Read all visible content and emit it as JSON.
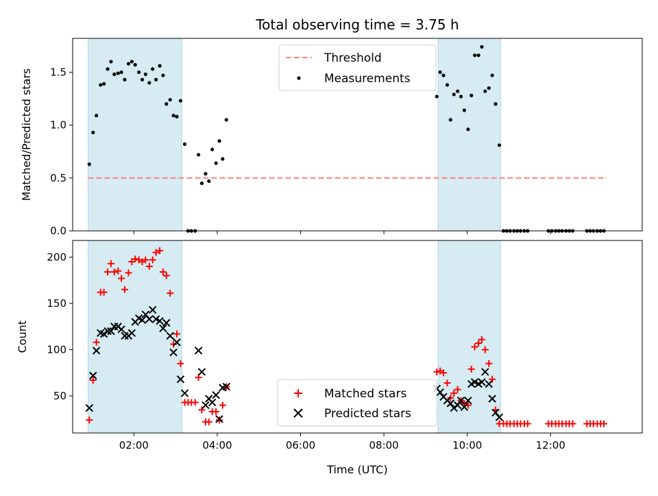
{
  "chart_data": [
    {
      "type": "scatter",
      "title": "Total observing time = 3.75 h",
      "xlabel": "",
      "ylabel": "Matched/Predicted stars",
      "xlim": [
        0.53,
        14.2
      ],
      "ylim": [
        0,
        1.82
      ],
      "yticks": [
        0.0,
        0.5,
        1.0,
        1.5
      ],
      "ytick_labels": [
        "0.0",
        "0.5",
        "1.0",
        "1.5"
      ],
      "xticks": [
        2,
        4,
        6,
        8,
        10,
        12
      ],
      "xtick_labels": [
        "",
        "",
        "",
        "",
        "",
        ""
      ],
      "shaded_regions": [
        [
          0.9,
          3.15
        ],
        [
          9.3,
          10.8
        ]
      ],
      "shade_color": "#add8e6",
      "threshold": {
        "name": "Threshold",
        "value": 0.5,
        "x_range": [
          0.9,
          13.35
        ],
        "color": "#ff7f7f"
      },
      "legend_position": "upper-center",
      "series": [
        {
          "name": "Measurements",
          "marker": "dot",
          "color": "#000000",
          "x": [
            0.93,
            1.02,
            1.1,
            1.2,
            1.28,
            1.37,
            1.45,
            1.53,
            1.62,
            1.7,
            1.78,
            1.87,
            1.95,
            2.03,
            2.12,
            2.2,
            2.28,
            2.37,
            2.45,
            2.53,
            2.62,
            2.7,
            2.78,
            2.87,
            2.95,
            3.03,
            3.12,
            3.22,
            3.3,
            3.38,
            3.47,
            3.55,
            3.63,
            3.72,
            3.8,
            3.88,
            3.97,
            4.05,
            4.13,
            4.22,
            9.27,
            9.35,
            9.43,
            9.52,
            9.6,
            9.68,
            9.77,
            9.85,
            9.93,
            10.02,
            10.1,
            10.18,
            10.27,
            10.35,
            10.43,
            10.52,
            10.6,
            10.68,
            10.77,
            10.87,
            10.95,
            11.03,
            11.12,
            11.2,
            11.28,
            11.37,
            11.45,
            11.95,
            12.03,
            12.12,
            12.2,
            12.28,
            12.37,
            12.45,
            12.53,
            12.87,
            12.95,
            13.03,
            13.12,
            13.2,
            13.28
          ],
          "y": [
            0.63,
            0.93,
            1.09,
            1.38,
            1.39,
            1.53,
            1.6,
            1.48,
            1.49,
            1.5,
            1.43,
            1.58,
            1.6,
            1.57,
            1.5,
            1.43,
            1.48,
            1.4,
            1.53,
            1.43,
            1.56,
            1.47,
            1.2,
            1.24,
            1.09,
            1.08,
            1.23,
            0.82,
            0.0,
            0.0,
            0.0,
            0.72,
            0.45,
            0.54,
            0.47,
            0.77,
            0.64,
            0.85,
            0.68,
            1.05,
            1.27,
            1.5,
            1.47,
            1.38,
            1.05,
            1.29,
            1.32,
            1.27,
            1.14,
            0.96,
            1.28,
            1.66,
            1.66,
            1.74,
            1.32,
            1.35,
            1.47,
            1.2,
            0.81,
            0.0,
            0.0,
            0.0,
            0.0,
            0.0,
            0.0,
            0.0,
            0.0,
            0.0,
            0.0,
            0.0,
            0.0,
            0.0,
            0.0,
            0.0,
            0.0,
            0.0,
            0.0,
            0.0,
            0.0,
            0.0,
            0.0
          ]
        }
      ]
    },
    {
      "type": "scatter",
      "title": "",
      "xlabel": "Time (UTC)",
      "ylabel": "Count",
      "xlim": [
        0.53,
        14.2
      ],
      "ylim": [
        10,
        218
      ],
      "yticks": [
        50,
        100,
        150,
        200
      ],
      "ytick_labels": [
        "50",
        "100",
        "150",
        "200"
      ],
      "xticks": [
        2,
        4,
        6,
        8,
        10,
        12
      ],
      "xtick_labels": [
        "02:00",
        "04:00",
        "06:00",
        "08:00",
        "10:00",
        "12:00"
      ],
      "shaded_regions": [
        [
          0.9,
          3.15
        ],
        [
          9.3,
          10.8
        ]
      ],
      "shade_color": "#add8e6",
      "legend_position": "lower-center",
      "series": [
        {
          "name": "Matched stars",
          "marker": "plus",
          "color": "#ff0000",
          "x": [
            0.93,
            1.02,
            1.1,
            1.2,
            1.28,
            1.37,
            1.45,
            1.53,
            1.62,
            1.7,
            1.78,
            1.87,
            1.95,
            2.03,
            2.12,
            2.2,
            2.28,
            2.37,
            2.45,
            2.53,
            2.62,
            2.7,
            2.78,
            2.87,
            2.95,
            3.03,
            3.12,
            3.22,
            3.3,
            3.38,
            3.47,
            3.55,
            3.63,
            3.72,
            3.8,
            3.88,
            3.97,
            4.05,
            4.13,
            4.22,
            9.27,
            9.35,
            9.43,
            9.52,
            9.6,
            9.68,
            9.77,
            9.85,
            9.93,
            10.02,
            10.1,
            10.18,
            10.27,
            10.35,
            10.43,
            10.52,
            10.6,
            10.68,
            10.77,
            10.87,
            10.95,
            11.03,
            11.12,
            11.2,
            11.28,
            11.37,
            11.45,
            11.95,
            12.03,
            12.12,
            12.2,
            12.28,
            12.37,
            12.45,
            12.53,
            12.87,
            12.95,
            13.03,
            13.12,
            13.2,
            13.28
          ],
          "y": [
            24,
            67,
            108,
            162,
            162,
            184,
            193,
            184,
            185,
            177,
            165,
            183,
            195,
            198,
            197,
            195,
            197,
            190,
            197,
            205,
            207,
            184,
            180,
            161,
            106,
            117,
            85,
            43,
            43,
            43,
            43,
            70,
            35,
            22,
            22,
            33,
            33,
            24,
            40,
            60,
            76,
            77,
            75,
            64,
            48,
            53,
            57,
            45,
            42,
            40,
            79,
            103,
            107,
            111,
            100,
            85,
            68,
            35,
            20,
            20,
            20,
            20,
            20,
            20,
            20,
            20,
            20,
            20,
            20,
            20,
            20,
            20,
            20,
            20,
            20,
            20,
            20,
            20,
            20,
            20,
            20
          ]
        },
        {
          "name": "Predicted stars",
          "marker": "x",
          "color": "#000000",
          "x": [
            0.93,
            1.02,
            1.1,
            1.2,
            1.28,
            1.37,
            1.45,
            1.53,
            1.62,
            1.7,
            1.78,
            1.87,
            1.95,
            2.03,
            2.12,
            2.2,
            2.28,
            2.37,
            2.45,
            2.53,
            2.62,
            2.7,
            2.78,
            2.87,
            2.95,
            3.03,
            3.12,
            3.22,
            3.55,
            3.63,
            3.72,
            3.8,
            3.88,
            3.97,
            4.05,
            4.13,
            4.22,
            9.27,
            9.35,
            9.43,
            9.52,
            9.6,
            9.68,
            9.77,
            9.85,
            9.93,
            10.02,
            10.1,
            10.18,
            10.27,
            10.35,
            10.43,
            10.52,
            10.6,
            10.68,
            10.77
          ],
          "y": [
            37,
            72,
            99,
            118,
            117,
            120,
            120,
            125,
            125,
            122,
            115,
            115,
            118,
            130,
            134,
            132,
            138,
            133,
            143,
            133,
            131,
            123,
            129,
            115,
            97,
            108,
            68,
            53,
            99,
            76,
            40,
            47,
            43,
            51,
            25,
            59,
            60,
            58,
            54,
            49,
            45,
            42,
            37,
            40,
            45,
            38,
            45,
            63,
            65,
            63,
            65,
            76,
            63,
            47,
            32,
            27
          ]
        }
      ]
    }
  ]
}
